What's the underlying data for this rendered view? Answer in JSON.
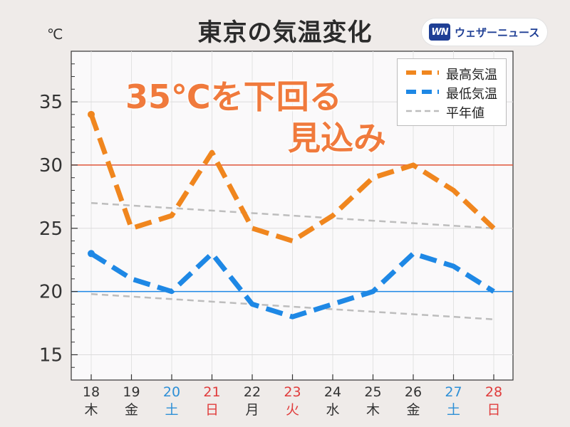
{
  "header": {
    "title": "東京の気温変化",
    "unit": "℃",
    "brand": "ウェザーニュース",
    "brand_mark": "WN"
  },
  "annotation": {
    "line1": "35℃を下回る",
    "line2": "見込み"
  },
  "chart_data": {
    "type": "line",
    "title": "東京の気温変化",
    "ylabel": "℃",
    "ylim": [
      13,
      39
    ],
    "yticks": [
      15,
      20,
      25,
      30,
      35
    ],
    "grid": true,
    "legend_position": "top-right",
    "categories": [
      {
        "day": "18",
        "weekday": "木",
        "color": "#333333"
      },
      {
        "day": "19",
        "weekday": "金",
        "color": "#333333"
      },
      {
        "day": "20",
        "weekday": "土",
        "color": "#2e8fd6"
      },
      {
        "day": "21",
        "weekday": "日",
        "color": "#e03c3c"
      },
      {
        "day": "22",
        "weekday": "月",
        "color": "#333333"
      },
      {
        "day": "23",
        "weekday": "火",
        "color": "#e03c3c"
      },
      {
        "day": "24",
        "weekday": "水",
        "color": "#333333"
      },
      {
        "day": "25",
        "weekday": "木",
        "color": "#333333"
      },
      {
        "day": "26",
        "weekday": "金",
        "color": "#333333"
      },
      {
        "day": "27",
        "weekday": "土",
        "color": "#2e8fd6"
      },
      {
        "day": "28",
        "weekday": "日",
        "color": "#e03c3c"
      }
    ],
    "series": [
      {
        "name": "最高気温",
        "color": "#f0861e",
        "style": "dashed-thick",
        "values": [
          34,
          25,
          26,
          31,
          25,
          24,
          26,
          29,
          30,
          28,
          25
        ]
      },
      {
        "name": "最低気温",
        "color": "#1e88e5",
        "style": "dashed-thick",
        "values": [
          23,
          21,
          20,
          23,
          19,
          18,
          19,
          20,
          23,
          22,
          20
        ]
      },
      {
        "name": "平年値",
        "color": "#bdbdbd",
        "style": "dashed-thin",
        "segments": [
          {
            "values": [
              27.0,
              26.8,
              26.6,
              26.4,
              26.2,
              26.0,
              25.8,
              25.6,
              25.4,
              25.2,
              25.0
            ]
          },
          {
            "values": [
              19.8,
              19.6,
              19.4,
              19.2,
              19.0,
              18.8,
              18.6,
              18.4,
              18.2,
              18.0,
              17.8
            ]
          }
        ]
      }
    ],
    "reference_lines": [
      {
        "value": 30,
        "color": "#e0573a"
      },
      {
        "value": 20,
        "color": "#1e88e5"
      }
    ]
  }
}
